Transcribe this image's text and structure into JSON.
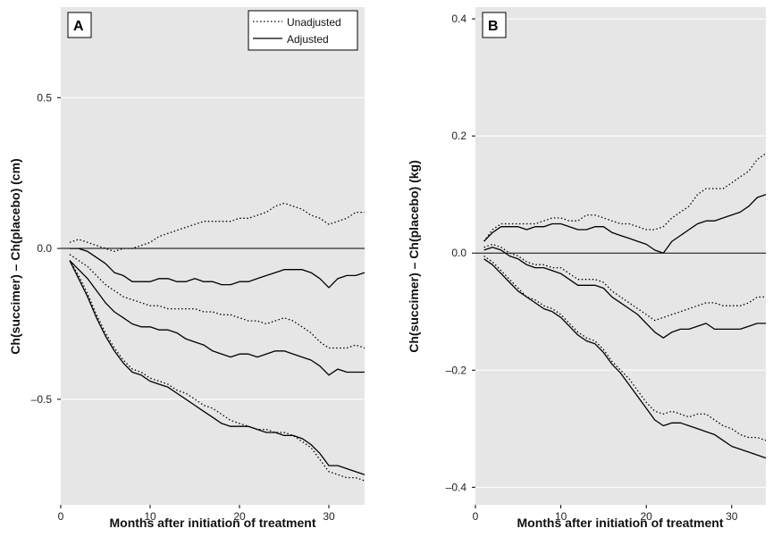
{
  "chart_data": [
    {
      "type": "line",
      "panel_label": "A",
      "xlabel": "Months after initiation of treatment",
      "ylabel": "Ch(succimer) – Ch(placebo) (cm)",
      "xlim": [
        0,
        34
      ],
      "ylim": [
        -0.85,
        0.8
      ],
      "xticks": [
        0,
        10,
        20,
        30
      ],
      "xtick_labels": [
        "0",
        "10",
        "20",
        "30"
      ],
      "yticks": [
        -0.5,
        0.0,
        0.5
      ],
      "ytick_labels": [
        "–0.5",
        "0.0",
        "0.5"
      ],
      "grid": "horizontal at y ticks",
      "reference_line": 0,
      "legend": {
        "position": "top-right",
        "entries": [
          {
            "label": "Unadjusted",
            "style": "dotted"
          },
          {
            "label": "Adjusted",
            "style": "solid"
          }
        ]
      },
      "series": [
        {
          "group": "Unadjusted",
          "style": "dotted",
          "x": [
            1,
            2,
            3,
            4,
            5,
            6,
            7,
            8,
            9,
            10,
            11,
            12,
            13,
            14,
            15,
            16,
            17,
            18,
            19,
            20,
            21,
            22,
            23,
            24,
            25,
            26,
            27,
            28,
            29,
            30,
            31,
            32,
            33,
            34
          ],
          "y": [
            0.02,
            0.03,
            0.02,
            0.01,
            0.0,
            -0.01,
            0.0,
            0.0,
            0.01,
            0.02,
            0.04,
            0.05,
            0.06,
            0.07,
            0.08,
            0.09,
            0.09,
            0.09,
            0.09,
            0.1,
            0.1,
            0.11,
            0.12,
            0.14,
            0.15,
            0.14,
            0.13,
            0.11,
            0.1,
            0.08,
            0.09,
            0.1,
            0.12,
            0.12
          ]
        },
        {
          "group": "Adjusted",
          "style": "solid",
          "x": [
            1,
            2,
            3,
            4,
            5,
            6,
            7,
            8,
            9,
            10,
            11,
            12,
            13,
            14,
            15,
            16,
            17,
            18,
            19,
            20,
            21,
            22,
            23,
            24,
            25,
            26,
            27,
            28,
            29,
            30,
            31,
            32,
            33,
            34
          ],
          "y": [
            0.0,
            0.0,
            -0.01,
            -0.03,
            -0.05,
            -0.08,
            -0.09,
            -0.11,
            -0.11,
            -0.11,
            -0.1,
            -0.1,
            -0.11,
            -0.11,
            -0.1,
            -0.11,
            -0.11,
            -0.12,
            -0.12,
            -0.11,
            -0.11,
            -0.1,
            -0.09,
            -0.08,
            -0.07,
            -0.07,
            -0.07,
            -0.08,
            -0.1,
            -0.13,
            -0.1,
            -0.09,
            -0.09,
            -0.08
          ]
        },
        {
          "group": "Unadjusted",
          "style": "dotted",
          "x": [
            1,
            2,
            3,
            4,
            5,
            6,
            7,
            8,
            9,
            10,
            11,
            12,
            13,
            14,
            15,
            16,
            17,
            18,
            19,
            20,
            21,
            22,
            23,
            24,
            25,
            26,
            27,
            28,
            29,
            30,
            31,
            32,
            33,
            34
          ],
          "y": [
            -0.02,
            -0.04,
            -0.06,
            -0.09,
            -0.12,
            -0.14,
            -0.16,
            -0.17,
            -0.18,
            -0.19,
            -0.19,
            -0.2,
            -0.2,
            -0.2,
            -0.2,
            -0.21,
            -0.21,
            -0.22,
            -0.22,
            -0.23,
            -0.24,
            -0.24,
            -0.25,
            -0.24,
            -0.23,
            -0.24,
            -0.26,
            -0.28,
            -0.31,
            -0.33,
            -0.33,
            -0.33,
            -0.32,
            -0.33
          ]
        },
        {
          "group": "Adjusted",
          "style": "solid",
          "x": [
            1,
            2,
            3,
            4,
            5,
            6,
            7,
            8,
            9,
            10,
            11,
            12,
            13,
            14,
            15,
            16,
            17,
            18,
            19,
            20,
            21,
            22,
            23,
            24,
            25,
            26,
            27,
            28,
            29,
            30,
            31,
            32,
            33,
            34
          ],
          "y": [
            -0.04,
            -0.07,
            -0.1,
            -0.14,
            -0.18,
            -0.21,
            -0.23,
            -0.25,
            -0.26,
            -0.26,
            -0.27,
            -0.27,
            -0.28,
            -0.3,
            -0.31,
            -0.32,
            -0.34,
            -0.35,
            -0.36,
            -0.35,
            -0.35,
            -0.36,
            -0.35,
            -0.34,
            -0.34,
            -0.35,
            -0.36,
            -0.37,
            -0.39,
            -0.42,
            -0.4,
            -0.41,
            -0.41,
            -0.41
          ]
        },
        {
          "group": "Unadjusted",
          "style": "dotted",
          "x": [
            1,
            2,
            3,
            4,
            5,
            6,
            7,
            8,
            9,
            10,
            11,
            12,
            13,
            14,
            15,
            16,
            17,
            18,
            19,
            20,
            21,
            22,
            23,
            24,
            25,
            26,
            27,
            28,
            29,
            30,
            31,
            32,
            33,
            34
          ],
          "y": [
            -0.04,
            -0.09,
            -0.15,
            -0.22,
            -0.28,
            -0.33,
            -0.37,
            -0.4,
            -0.41,
            -0.43,
            -0.44,
            -0.45,
            -0.47,
            -0.48,
            -0.5,
            -0.52,
            -0.53,
            -0.55,
            -0.57,
            -0.58,
            -0.59,
            -0.6,
            -0.6,
            -0.61,
            -0.61,
            -0.62,
            -0.64,
            -0.66,
            -0.7,
            -0.74,
            -0.75,
            -0.76,
            -0.76,
            -0.77
          ]
        },
        {
          "group": "Adjusted",
          "style": "solid",
          "x": [
            1,
            2,
            3,
            4,
            5,
            6,
            7,
            8,
            9,
            10,
            11,
            12,
            13,
            14,
            15,
            16,
            17,
            18,
            19,
            20,
            21,
            22,
            23,
            24,
            25,
            26,
            27,
            28,
            29,
            30,
            31,
            32,
            33,
            34
          ],
          "y": [
            -0.04,
            -0.1,
            -0.16,
            -0.23,
            -0.29,
            -0.34,
            -0.38,
            -0.41,
            -0.42,
            -0.44,
            -0.45,
            -0.46,
            -0.48,
            -0.5,
            -0.52,
            -0.54,
            -0.56,
            -0.58,
            -0.59,
            -0.59,
            -0.59,
            -0.6,
            -0.61,
            -0.61,
            -0.62,
            -0.62,
            -0.63,
            -0.65,
            -0.68,
            -0.72,
            -0.72,
            -0.73,
            -0.74,
            -0.75
          ]
        }
      ]
    },
    {
      "type": "line",
      "panel_label": "B",
      "xlabel": "Months after initiation of treatment",
      "ylabel": "Ch(succimer) – Ch(placebo) (kg)",
      "xlim": [
        0,
        34
      ],
      "ylim": [
        -0.43,
        0.42
      ],
      "xticks": [
        0,
        10,
        20,
        30
      ],
      "xtick_labels": [
        "0",
        "10",
        "20",
        "30"
      ],
      "yticks": [
        -0.4,
        -0.2,
        0.0,
        0.2,
        0.4
      ],
      "ytick_labels": [
        "–0.4",
        "–0.2",
        "0.0",
        "0.2",
        "0.4"
      ],
      "grid": "horizontal at y ticks",
      "reference_line": 0,
      "series": [
        {
          "group": "Unadjusted",
          "style": "dotted",
          "x": [
            1,
            2,
            3,
            4,
            5,
            6,
            7,
            8,
            9,
            10,
            11,
            12,
            13,
            14,
            15,
            16,
            17,
            18,
            19,
            20,
            21,
            22,
            23,
            24,
            25,
            26,
            27,
            28,
            29,
            30,
            31,
            32,
            33,
            34
          ],
          "y": [
            0.02,
            0.04,
            0.05,
            0.05,
            0.05,
            0.05,
            0.05,
            0.055,
            0.06,
            0.06,
            0.055,
            0.055,
            0.065,
            0.065,
            0.06,
            0.055,
            0.05,
            0.05,
            0.045,
            0.04,
            0.04,
            0.045,
            0.06,
            0.07,
            0.08,
            0.1,
            0.11,
            0.11,
            0.11,
            0.12,
            0.13,
            0.14,
            0.16,
            0.17
          ]
        },
        {
          "group": "Adjusted",
          "style": "solid",
          "x": [
            1,
            2,
            3,
            4,
            5,
            6,
            7,
            8,
            9,
            10,
            11,
            12,
            13,
            14,
            15,
            16,
            17,
            18,
            19,
            20,
            21,
            22,
            23,
            24,
            25,
            26,
            27,
            28,
            29,
            30,
            31,
            32,
            33,
            34
          ],
          "y": [
            0.02,
            0.035,
            0.045,
            0.045,
            0.045,
            0.04,
            0.045,
            0.045,
            0.05,
            0.05,
            0.045,
            0.04,
            0.04,
            0.045,
            0.045,
            0.035,
            0.03,
            0.025,
            0.02,
            0.015,
            0.005,
            0.0,
            0.02,
            0.03,
            0.04,
            0.05,
            0.055,
            0.055,
            0.06,
            0.065,
            0.07,
            0.08,
            0.095,
            0.1
          ]
        },
        {
          "group": "Unadjusted",
          "style": "dotted",
          "x": [
            1,
            2,
            3,
            4,
            5,
            6,
            7,
            8,
            9,
            10,
            11,
            12,
            13,
            14,
            15,
            16,
            17,
            18,
            19,
            20,
            21,
            22,
            23,
            24,
            25,
            26,
            27,
            28,
            29,
            30,
            31,
            32,
            33,
            34
          ],
          "y": [
            0.01,
            0.015,
            0.01,
            0.0,
            -0.005,
            -0.015,
            -0.02,
            -0.02,
            -0.025,
            -0.025,
            -0.035,
            -0.045,
            -0.045,
            -0.045,
            -0.05,
            -0.065,
            -0.075,
            -0.085,
            -0.095,
            -0.105,
            -0.115,
            -0.11,
            -0.105,
            -0.1,
            -0.095,
            -0.09,
            -0.085,
            -0.085,
            -0.09,
            -0.09,
            -0.09,
            -0.085,
            -0.075,
            -0.075
          ]
        },
        {
          "group": "Adjusted",
          "style": "solid",
          "x": [
            1,
            2,
            3,
            4,
            5,
            6,
            7,
            8,
            9,
            10,
            11,
            12,
            13,
            14,
            15,
            16,
            17,
            18,
            19,
            20,
            21,
            22,
            23,
            24,
            25,
            26,
            27,
            28,
            29,
            30,
            31,
            32,
            33,
            34
          ],
          "y": [
            0.005,
            0.01,
            0.005,
            -0.005,
            -0.01,
            -0.02,
            -0.025,
            -0.025,
            -0.03,
            -0.035,
            -0.045,
            -0.055,
            -0.055,
            -0.055,
            -0.06,
            -0.075,
            -0.085,
            -0.095,
            -0.105,
            -0.12,
            -0.135,
            -0.145,
            -0.135,
            -0.13,
            -0.13,
            -0.125,
            -0.12,
            -0.13,
            -0.13,
            -0.13,
            -0.13,
            -0.125,
            -0.12,
            -0.12
          ]
        },
        {
          "group": "Unadjusted",
          "style": "dotted",
          "x": [
            1,
            2,
            3,
            4,
            5,
            6,
            7,
            8,
            9,
            10,
            11,
            12,
            13,
            14,
            15,
            16,
            17,
            18,
            19,
            20,
            21,
            22,
            23,
            24,
            25,
            26,
            27,
            28,
            29,
            30,
            31,
            32,
            33,
            34
          ],
          "y": [
            -0.005,
            -0.015,
            -0.03,
            -0.045,
            -0.06,
            -0.075,
            -0.08,
            -0.09,
            -0.095,
            -0.105,
            -0.12,
            -0.135,
            -0.145,
            -0.15,
            -0.165,
            -0.185,
            -0.2,
            -0.215,
            -0.235,
            -0.255,
            -0.27,
            -0.275,
            -0.27,
            -0.275,
            -0.28,
            -0.275,
            -0.275,
            -0.285,
            -0.295,
            -0.3,
            -0.31,
            -0.315,
            -0.315,
            -0.32
          ]
        },
        {
          "group": "Adjusted",
          "style": "solid",
          "x": [
            1,
            2,
            3,
            4,
            5,
            6,
            7,
            8,
            9,
            10,
            11,
            12,
            13,
            14,
            15,
            16,
            17,
            18,
            19,
            20,
            21,
            22,
            23,
            24,
            25,
            26,
            27,
            28,
            29,
            30,
            31,
            32,
            33,
            34
          ],
          "y": [
            -0.01,
            -0.02,
            -0.035,
            -0.05,
            -0.065,
            -0.075,
            -0.085,
            -0.095,
            -0.1,
            -0.11,
            -0.125,
            -0.14,
            -0.15,
            -0.155,
            -0.17,
            -0.19,
            -0.205,
            -0.225,
            -0.245,
            -0.265,
            -0.285,
            -0.295,
            -0.29,
            -0.29,
            -0.295,
            -0.3,
            -0.305,
            -0.31,
            -0.32,
            -0.33,
            -0.335,
            -0.34,
            -0.345,
            -0.35
          ]
        }
      ]
    }
  ]
}
